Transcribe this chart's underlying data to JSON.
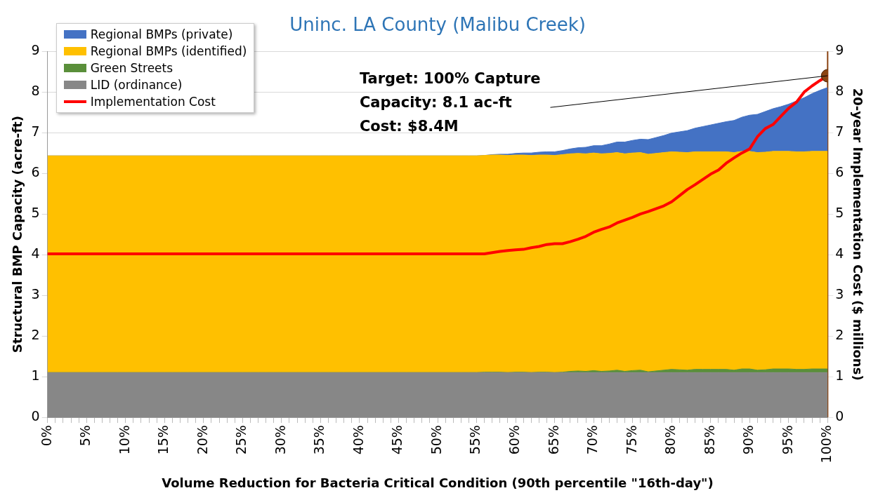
{
  "chart_data": {
    "type": "area",
    "title": "Uninc. LA County (Malibu Creek)",
    "xlabel": "Volume Reduction for Bacteria Critical Condition (90th percentile \"16th-day\")",
    "ylabel": "Structural BMP Capacity (acre-ft)",
    "y2label": "20-year Implementation Cost ($ millions)",
    "x": [
      0,
      1,
      2,
      3,
      4,
      5,
      6,
      7,
      8,
      9,
      10,
      11,
      12,
      13,
      14,
      15,
      16,
      17,
      18,
      19,
      20,
      21,
      22,
      23,
      24,
      25,
      26,
      27,
      28,
      29,
      30,
      31,
      32,
      33,
      34,
      35,
      36,
      37,
      38,
      39,
      40,
      41,
      42,
      43,
      44,
      45,
      46,
      47,
      48,
      49,
      50,
      51,
      52,
      53,
      54,
      55,
      56,
      57,
      58,
      59,
      60,
      61,
      62,
      63,
      64,
      65,
      66,
      67,
      68,
      69,
      70,
      71,
      72,
      73,
      74,
      75,
      76,
      77,
      78,
      79,
      80,
      81,
      82,
      83,
      84,
      85,
      86,
      87,
      88,
      89,
      90,
      91,
      92,
      93,
      94,
      95,
      96,
      97,
      98,
      99,
      100
    ],
    "stacked": true,
    "series": [
      {
        "name": "LID (ordinance)",
        "color": "#878787",
        "values": [
          1.1,
          1.1,
          1.1,
          1.1,
          1.1,
          1.1,
          1.1,
          1.1,
          1.1,
          1.1,
          1.1,
          1.1,
          1.1,
          1.1,
          1.1,
          1.1,
          1.1,
          1.1,
          1.1,
          1.1,
          1.1,
          1.1,
          1.1,
          1.1,
          1.1,
          1.1,
          1.1,
          1.1,
          1.1,
          1.1,
          1.1,
          1.1,
          1.1,
          1.1,
          1.1,
          1.1,
          1.1,
          1.1,
          1.1,
          1.1,
          1.1,
          1.1,
          1.1,
          1.1,
          1.1,
          1.1,
          1.1,
          1.1,
          1.1,
          1.1,
          1.1,
          1.1,
          1.1,
          1.1,
          1.1,
          1.1,
          1.1,
          1.1,
          1.1,
          1.1,
          1.1,
          1.1,
          1.1,
          1.1,
          1.1,
          1.1,
          1.1,
          1.1,
          1.1,
          1.1,
          1.1,
          1.1,
          1.1,
          1.1,
          1.1,
          1.1,
          1.1,
          1.1,
          1.1,
          1.1,
          1.1,
          1.1,
          1.1,
          1.1,
          1.1,
          1.1,
          1.1,
          1.1,
          1.1,
          1.1,
          1.1,
          1.1,
          1.1,
          1.1,
          1.1,
          1.1,
          1.1,
          1.1,
          1.1,
          1.1,
          1.1
        ]
      },
      {
        "name": "Green Streets",
        "color": "#5a8f3a",
        "values": [
          0,
          0,
          0,
          0,
          0,
          0,
          0,
          0,
          0,
          0,
          0,
          0,
          0,
          0,
          0,
          0,
          0,
          0,
          0,
          0,
          0,
          0,
          0,
          0,
          0,
          0,
          0,
          0,
          0,
          0,
          0,
          0,
          0,
          0,
          0,
          0,
          0,
          0,
          0,
          0,
          0,
          0,
          0,
          0,
          0,
          0,
          0,
          0,
          0,
          0,
          0,
          0,
          0,
          0,
          0,
          0,
          0.01,
          0.01,
          0.01,
          0,
          0.01,
          0.01,
          0,
          0.01,
          0.01,
          0,
          0.01,
          0.03,
          0.04,
          0.03,
          0.05,
          0.03,
          0.04,
          0.06,
          0.03,
          0.05,
          0.06,
          0.02,
          0.04,
          0.06,
          0.08,
          0.07,
          0.06,
          0.08,
          0.08,
          0.08,
          0.08,
          0.08,
          0.06,
          0.09,
          0.09,
          0.06,
          0.07,
          0.09,
          0.09,
          0.09,
          0.08,
          0.08,
          0.09,
          0.09,
          0.09
        ]
      },
      {
        "name": "Regional BMPs (identified)",
        "color": "#ffc000",
        "values": [
          5.33,
          5.33,
          5.33,
          5.33,
          5.33,
          5.33,
          5.33,
          5.33,
          5.33,
          5.33,
          5.33,
          5.33,
          5.33,
          5.33,
          5.33,
          5.33,
          5.33,
          5.33,
          5.33,
          5.33,
          5.33,
          5.33,
          5.33,
          5.33,
          5.33,
          5.33,
          5.33,
          5.33,
          5.33,
          5.33,
          5.33,
          5.33,
          5.33,
          5.33,
          5.33,
          5.33,
          5.33,
          5.33,
          5.33,
          5.33,
          5.33,
          5.33,
          5.33,
          5.33,
          5.33,
          5.33,
          5.33,
          5.33,
          5.33,
          5.33,
          5.33,
          5.33,
          5.33,
          5.33,
          5.33,
          5.33,
          5.33,
          5.34,
          5.34,
          5.34,
          5.34,
          5.34,
          5.34,
          5.34,
          5.34,
          5.34,
          5.35,
          5.35,
          5.35,
          5.35,
          5.35,
          5.35,
          5.35,
          5.35,
          5.35,
          5.35,
          5.35,
          5.35,
          5.35,
          5.35,
          5.35,
          5.35,
          5.35,
          5.35,
          5.35,
          5.35,
          5.35,
          5.35,
          5.35,
          5.35,
          5.35,
          5.35,
          5.35,
          5.35,
          5.35,
          5.35,
          5.35,
          5.35,
          5.35,
          5.35,
          5.35
        ]
      },
      {
        "name": "Regional BMPs (private)",
        "color": "#4472c4",
        "values": [
          0,
          0,
          0,
          0,
          0,
          0,
          0,
          0,
          0,
          0,
          0,
          0,
          0,
          0,
          0,
          0,
          0,
          0,
          0,
          0,
          0,
          0,
          0,
          0,
          0,
          0,
          0,
          0,
          0,
          0,
          0,
          0,
          0,
          0,
          0,
          0,
          0,
          0,
          0,
          0,
          0,
          0,
          0,
          0,
          0,
          0,
          0,
          0,
          0,
          0,
          0,
          0,
          0,
          0,
          0,
          0,
          0,
          0.01,
          0.02,
          0.03,
          0.04,
          0.05,
          0.06,
          0.07,
          0.08,
          0.09,
          0.1,
          0.12,
          0.14,
          0.16,
          0.18,
          0.2,
          0.23,
          0.26,
          0.29,
          0.31,
          0.33,
          0.36,
          0.39,
          0.42,
          0.46,
          0.5,
          0.54,
          0.58,
          0.62,
          0.66,
          0.7,
          0.74,
          0.79,
          0.84,
          0.89,
          0.94,
          1.0,
          1.05,
          1.1,
          1.16,
          1.25,
          1.33,
          1.42,
          1.5,
          1.57
        ]
      },
      {
        "name": "Implementation Cost",
        "type": "line",
        "axis": "y2",
        "color": "#ff0000",
        "values": [
          4.02,
          4.02,
          4.02,
          4.02,
          4.02,
          4.02,
          4.02,
          4.02,
          4.02,
          4.02,
          4.02,
          4.02,
          4.02,
          4.02,
          4.02,
          4.02,
          4.02,
          4.02,
          4.02,
          4.02,
          4.02,
          4.02,
          4.02,
          4.02,
          4.02,
          4.02,
          4.02,
          4.02,
          4.02,
          4.02,
          4.02,
          4.02,
          4.02,
          4.02,
          4.02,
          4.02,
          4.02,
          4.02,
          4.02,
          4.02,
          4.02,
          4.02,
          4.02,
          4.02,
          4.02,
          4.02,
          4.02,
          4.02,
          4.02,
          4.02,
          4.02,
          4.02,
          4.02,
          4.02,
          4.02,
          4.02,
          4.02,
          4.05,
          4.08,
          4.1,
          4.12,
          4.13,
          4.17,
          4.2,
          4.25,
          4.27,
          4.27,
          4.32,
          4.38,
          4.45,
          4.55,
          4.62,
          4.68,
          4.78,
          4.85,
          4.92,
          5.0,
          5.06,
          5.13,
          5.2,
          5.3,
          5.45,
          5.6,
          5.72,
          5.85,
          5.98,
          6.08,
          6.25,
          6.38,
          6.5,
          6.6,
          6.9,
          7.1,
          7.2,
          7.4,
          7.6,
          7.75,
          8.0,
          8.15,
          8.28,
          8.4
        ]
      },
      {
        "type": "scatter",
        "axis": "y2",
        "color": "#8b4513",
        "x": [
          100
        ],
        "values": [
          8.4
        ]
      }
    ],
    "ref_lines": [
      {
        "axis": "x",
        "value": 100,
        "color": "#8b4513"
      }
    ],
    "annotations": [
      {
        "text": "Target: 100% Capture\nCapacity: 8.1 ac-ft\nCost: $8.4M",
        "x": 100,
        "y": 8.4
      }
    ],
    "xlim": [
      0,
      100
    ],
    "xticks": [
      {
        "value": 0,
        "label": "0%"
      },
      {
        "value": 1,
        "label": null
      },
      {
        "value": 2,
        "label": null
      },
      {
        "value": 3,
        "label": null
      },
      {
        "value": 4,
        "label": null
      },
      {
        "value": 5,
        "label": "5%"
      },
      {
        "value": 6,
        "label": null
      },
      {
        "value": 7,
        "label": null
      },
      {
        "value": 8,
        "label": null
      },
      {
        "value": 9,
        "label": null
      },
      {
        "value": 10,
        "label": "10%"
      },
      {
        "value": 11,
        "label": null
      },
      {
        "value": 12,
        "label": null
      },
      {
        "value": 13,
        "label": null
      },
      {
        "value": 14,
        "label": null
      },
      {
        "value": 15,
        "label": "15%"
      },
      {
        "value": 16,
        "label": null
      },
      {
        "value": 17,
        "label": null
      },
      {
        "value": 18,
        "label": null
      },
      {
        "value": 19,
        "label": null
      },
      {
        "value": 20,
        "label": "20%"
      },
      {
        "value": 21,
        "label": null
      },
      {
        "value": 22,
        "label": null
      },
      {
        "value": 23,
        "label": null
      },
      {
        "value": 24,
        "label": null
      },
      {
        "value": 25,
        "label": "25%"
      },
      {
        "value": 26,
        "label": null
      },
      {
        "value": 27,
        "label": null
      },
      {
        "value": 28,
        "label": null
      },
      {
        "value": 29,
        "label": null
      },
      {
        "value": 30,
        "label": "30%"
      },
      {
        "value": 31,
        "label": null
      },
      {
        "value": 32,
        "label": null
      },
      {
        "value": 33,
        "label": null
      },
      {
        "value": 34,
        "label": null
      },
      {
        "value": 35,
        "label": "35%"
      },
      {
        "value": 36,
        "label": null
      },
      {
        "value": 37,
        "label": null
      },
      {
        "value": 38,
        "label": null
      },
      {
        "value": 39,
        "label": null
      },
      {
        "value": 40,
        "label": "40%"
      },
      {
        "value": 41,
        "label": null
      },
      {
        "value": 42,
        "label": null
      },
      {
        "value": 43,
        "label": null
      },
      {
        "value": 44,
        "label": null
      },
      {
        "value": 45,
        "label": "45%"
      },
      {
        "value": 46,
        "label": null
      },
      {
        "value": 47,
        "label": null
      },
      {
        "value": 48,
        "label": null
      },
      {
        "value": 49,
        "label": null
      },
      {
        "value": 50,
        "label": "50%"
      },
      {
        "value": 51,
        "label": null
      },
      {
        "value": 52,
        "label": null
      },
      {
        "value": 53,
        "label": null
      },
      {
        "value": 54,
        "label": null
      },
      {
        "value": 55,
        "label": "55%"
      },
      {
        "value": 56,
        "label": null
      },
      {
        "value": 57,
        "label": null
      },
      {
        "value": 58,
        "label": null
      },
      {
        "value": 59,
        "label": null
      },
      {
        "value": 60,
        "label": "60%"
      },
      {
        "value": 61,
        "label": null
      },
      {
        "value": 62,
        "label": null
      },
      {
        "value": 63,
        "label": null
      },
      {
        "value": 64,
        "label": null
      },
      {
        "value": 65,
        "label": "65%"
      },
      {
        "value": 66,
        "label": null
      },
      {
        "value": 67,
        "label": null
      },
      {
        "value": 68,
        "label": null
      },
      {
        "value": 69,
        "label": null
      },
      {
        "value": 70,
        "label": "70%"
      },
      {
        "value": 71,
        "label": null
      },
      {
        "value": 72,
        "label": null
      },
      {
        "value": 73,
        "label": null
      },
      {
        "value": 74,
        "label": null
      },
      {
        "value": 75,
        "label": "75%"
      },
      {
        "value": 76,
        "label": null
      },
      {
        "value": 77,
        "label": null
      },
      {
        "value": 78,
        "label": null
      },
      {
        "value": 79,
        "label": null
      },
      {
        "value": 80,
        "label": "80%"
      },
      {
        "value": 81,
        "label": null
      },
      {
        "value": 82,
        "label": null
      },
      {
        "value": 83,
        "label": null
      },
      {
        "value": 84,
        "label": null
      },
      {
        "value": 85,
        "label": "85%"
      },
      {
        "value": 86,
        "label": null
      },
      {
        "value": 87,
        "label": null
      },
      {
        "value": 88,
        "label": null
      },
      {
        "value": 89,
        "label": null
      },
      {
        "value": 90,
        "label": "90%"
      },
      {
        "value": 91,
        "label": null
      },
      {
        "value": 92,
        "label": null
      },
      {
        "value": 93,
        "label": null
      },
      {
        "value": 94,
        "label": null
      },
      {
        "value": 95,
        "label": "95%"
      },
      {
        "value": 96,
        "label": null
      },
      {
        "value": 97,
        "label": null
      },
      {
        "value": 98,
        "label": null
      },
      {
        "value": 99,
        "label": null
      },
      {
        "value": 100,
        "label": "100%"
      }
    ],
    "ylim": [
      0,
      9
    ],
    "yticks": [
      0,
      1,
      2,
      3,
      4,
      5,
      6,
      7,
      8,
      9
    ],
    "y2lim": [
      0,
      9
    ],
    "y2ticks": [
      0,
      1,
      2,
      3,
      4,
      5,
      6,
      7,
      8,
      9
    ],
    "grid": "y",
    "legend": "top left"
  }
}
